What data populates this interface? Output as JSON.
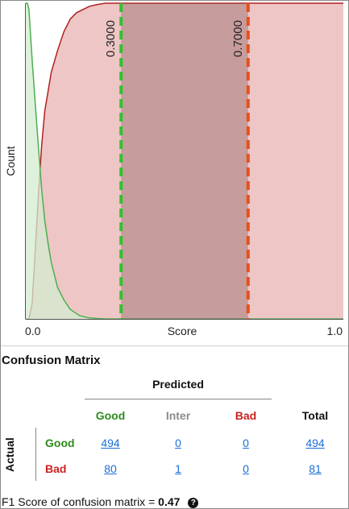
{
  "chart_data": {
    "type": "area",
    "ylabel": "Count",
    "xlabel": "Score",
    "xlim": [
      0.0,
      1.0
    ],
    "x_tick_labels": [
      "0.0",
      "1.0"
    ],
    "thresholds": [
      {
        "value": 0.3,
        "label": "0.3000",
        "color": "#2ec42e"
      },
      {
        "value": 0.7,
        "label": "0.7000",
        "color": "#e8501a"
      }
    ],
    "series": [
      {
        "color": "#4caf50",
        "fill": "#d3ecd0",
        "x": [
          0.0,
          0.005,
          0.01,
          0.015,
          0.02,
          0.03,
          0.04,
          0.05,
          0.06,
          0.07,
          0.08,
          0.1,
          0.12,
          0.14,
          0.17,
          0.2,
          0.25,
          0.3,
          1.0
        ],
        "y": [
          1.0,
          1.0,
          0.98,
          0.9,
          0.82,
          0.68,
          0.54,
          0.41,
          0.31,
          0.24,
          0.18,
          0.1,
          0.06,
          0.03,
          0.01,
          0.003,
          0.0,
          0.0,
          0.0
        ]
      },
      {
        "color": "#b02020",
        "fill": "#eec6c6",
        "x": [
          0.0,
          0.01,
          0.02,
          0.03,
          0.04,
          0.05,
          0.06,
          0.07,
          0.08,
          0.1,
          0.12,
          0.14,
          0.16,
          0.18,
          0.2,
          0.22,
          0.25,
          0.3,
          0.5,
          1.0
        ],
        "y": [
          0.0,
          0.0,
          0.05,
          0.22,
          0.4,
          0.55,
          0.66,
          0.72,
          0.78,
          0.85,
          0.91,
          0.95,
          0.97,
          0.98,
          0.99,
          0.995,
          1.0,
          1.0,
          1.0,
          1.0
        ]
      }
    ]
  },
  "confusion": {
    "title": "Confusion Matrix",
    "predicted_label": "Predicted",
    "actual_label": "Actual",
    "columns": [
      {
        "label": "Good",
        "color": "#2e8b1e"
      },
      {
        "label": "Inter",
        "color": "#8c8c8c"
      },
      {
        "label": "Bad",
        "color": "#cc2020"
      },
      {
        "label": "Total",
        "color": "#111111"
      }
    ],
    "rows": [
      {
        "label": "Good",
        "color": "#2e8b1e",
        "cells": [
          "494",
          "0",
          "0",
          "494"
        ]
      },
      {
        "label": "Bad",
        "color": "#cc2020",
        "cells": [
          "80",
          "1",
          "0",
          "81"
        ]
      }
    ]
  },
  "f1": {
    "label": "F1 Score of confusion matrix",
    "equals": "=",
    "value": "0.47",
    "help_glyph": "?"
  }
}
